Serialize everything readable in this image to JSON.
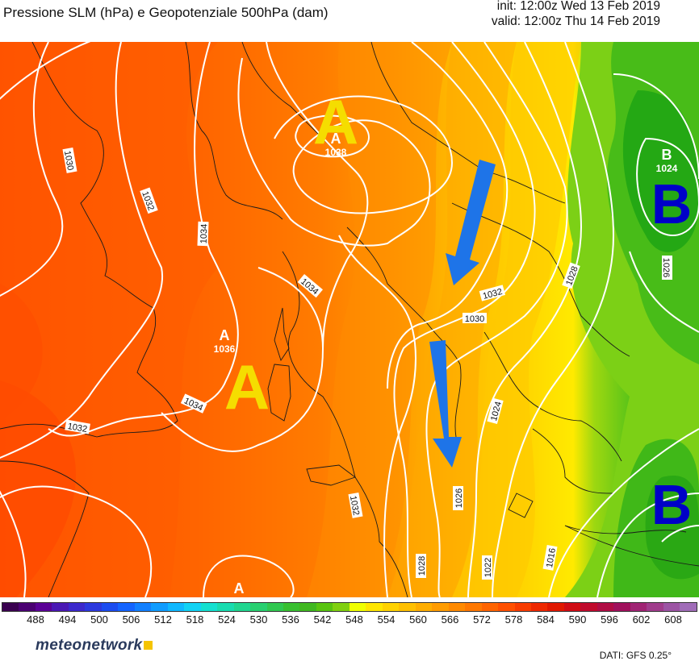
{
  "header": {
    "title": "Pressione SLM (hPa) e Geopotenziale 500hPa (dam)",
    "init": "init: 12:00z Wed 13 Feb 2019",
    "valid": "valid: 12:00z Thu 14 Feb 2019"
  },
  "map": {
    "pressure_centers": [
      {
        "type": "high",
        "letter": "A",
        "value": "1038"
      },
      {
        "type": "high",
        "letter": "A",
        "value": "1036"
      },
      {
        "type": "high",
        "letter": "A",
        "value": ""
      },
      {
        "type": "low",
        "letter": "B",
        "value": "1024"
      }
    ],
    "big_labels": [
      {
        "letter": "A",
        "color": "#f5dd00"
      },
      {
        "letter": "A",
        "color": "#f5dd00"
      },
      {
        "letter": "B",
        "color": "#0000c8"
      },
      {
        "letter": "B",
        "color": "#0000c8"
      }
    ],
    "isobar_labels": [
      "1030",
      "1032",
      "1034",
      "1034",
      "1034",
      "1032",
      "1032",
      "1030",
      "1028",
      "1026",
      "1024",
      "1026",
      "1028",
      "1022",
      "1016",
      "1032"
    ],
    "arrow_color": "#1e74e8"
  },
  "colorbar": {
    "ticks": [
      "488",
      "494",
      "500",
      "506",
      "512",
      "518",
      "524",
      "530",
      "536",
      "542",
      "548",
      "554",
      "560",
      "566",
      "572",
      "578",
      "584",
      "590",
      "596",
      "602",
      "608"
    ],
    "colors": [
      "#3a0050",
      "#4a0072",
      "#5a0096",
      "#4a18b4",
      "#3c28cc",
      "#2c38de",
      "#1c4cf0",
      "#1464ff",
      "#1280ff",
      "#109cff",
      "#10b8ff",
      "#12d2f4",
      "#14e0d0",
      "#18dcb0",
      "#20d690",
      "#28d070",
      "#30c850",
      "#38c030",
      "#40b820",
      "#58c410",
      "#80d010",
      "#f0ff00",
      "#ffe600",
      "#ffd200",
      "#ffc000",
      "#ffae00",
      "#ff9c00",
      "#ff8a00",
      "#ff7800",
      "#ff6400",
      "#ff5000",
      "#f83c00",
      "#ee2800",
      "#e01800",
      "#d00c14",
      "#c00a2c",
      "#b00c44",
      "#a0105c",
      "#a02474",
      "#a03c8c",
      "#9c54a4",
      "#a06cb8"
    ]
  },
  "footer": {
    "brand": "meteonetwork",
    "source": "DATI: GFS 0.25°"
  }
}
